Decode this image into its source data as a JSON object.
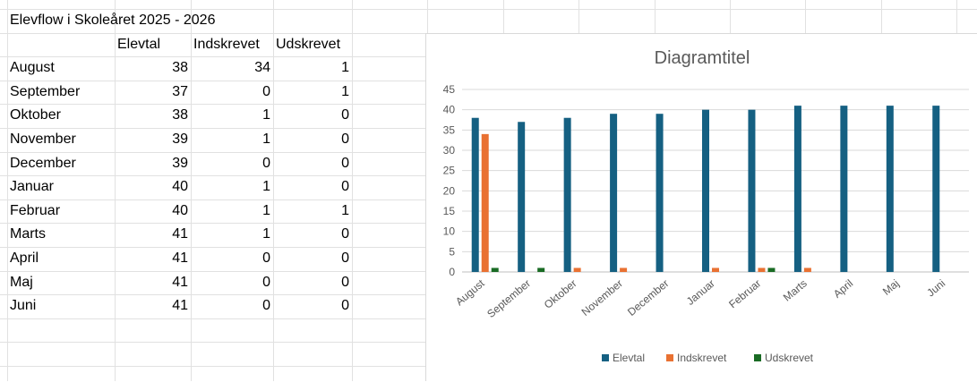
{
  "sheet": {
    "title": "Elevflow i Skoleåret 2025 - 2026",
    "headers": [
      "Elevtal",
      "Indskrevet",
      "Udskrevet"
    ],
    "rows": [
      {
        "month": "August",
        "values": [
          38,
          34,
          1
        ]
      },
      {
        "month": "September",
        "values": [
          37,
          0,
          1
        ]
      },
      {
        "month": "Oktober",
        "values": [
          38,
          1,
          0
        ]
      },
      {
        "month": "November",
        "values": [
          39,
          1,
          0
        ]
      },
      {
        "month": "December",
        "values": [
          39,
          0,
          0
        ]
      },
      {
        "month": "Januar",
        "values": [
          40,
          1,
          0
        ]
      },
      {
        "month": "Februar",
        "values": [
          40,
          1,
          1
        ]
      },
      {
        "month": "Marts",
        "values": [
          41,
          1,
          0
        ]
      },
      {
        "month": "April",
        "values": [
          41,
          0,
          0
        ]
      },
      {
        "month": "Maj",
        "values": [
          41,
          0,
          0
        ]
      },
      {
        "month": "Juni",
        "values": [
          41,
          0,
          0
        ]
      }
    ]
  },
  "chart_data": {
    "type": "bar",
    "title": "Diagramtitel",
    "categories": [
      "August",
      "September",
      "Oktober",
      "November",
      "December",
      "Januar",
      "Februar",
      "Marts",
      "April",
      "Maj",
      "Juni"
    ],
    "series": [
      {
        "name": "Elevtal",
        "color": "#156082",
        "values": [
          38,
          37,
          38,
          39,
          39,
          40,
          40,
          41,
          41,
          41,
          41
        ]
      },
      {
        "name": "Indskrevet",
        "color": "#e97132",
        "values": [
          34,
          0,
          1,
          1,
          0,
          1,
          1,
          1,
          0,
          0,
          0
        ]
      },
      {
        "name": "Udskrevet",
        "color": "#196b24",
        "values": [
          1,
          1,
          0,
          0,
          0,
          0,
          1,
          0,
          0,
          0,
          0
        ]
      }
    ],
    "ylim": [
      0,
      45
    ],
    "yticks": [
      0,
      5,
      10,
      15,
      20,
      25,
      30,
      35,
      40,
      45
    ],
    "grid": true,
    "legend": "bottom"
  }
}
